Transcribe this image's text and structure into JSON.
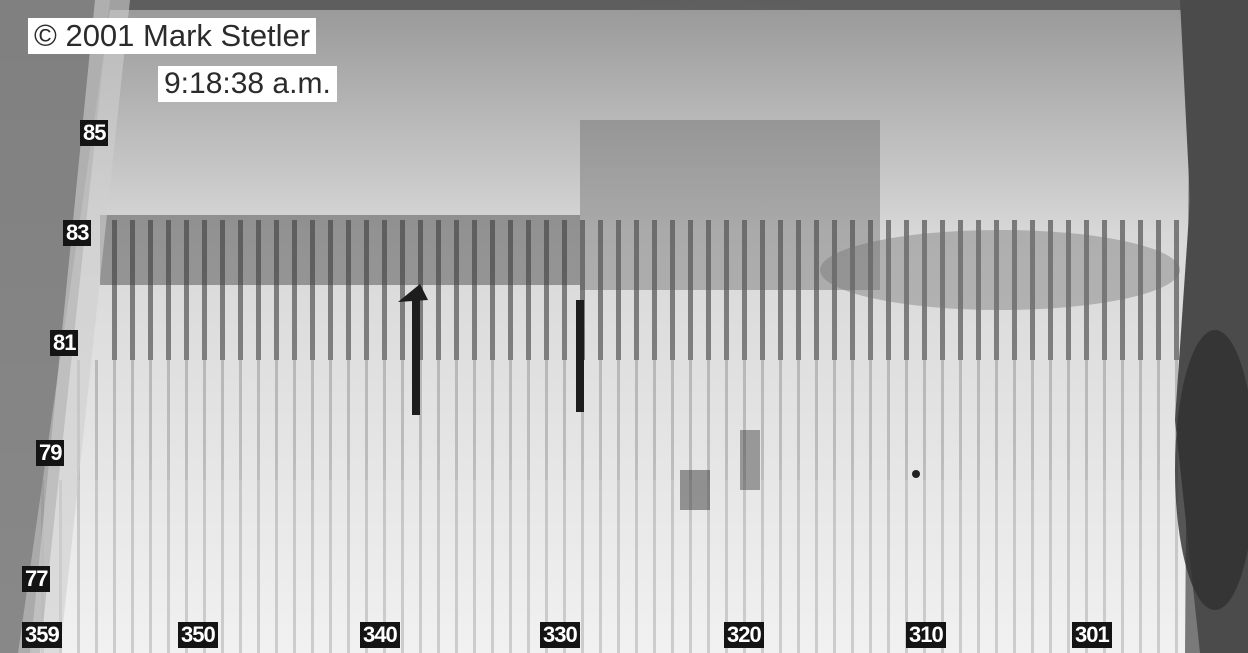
{
  "credit": {
    "copyright": "© 2001 Mark Stetler",
    "time": "9:18:38 a.m."
  },
  "floor_labels": [
    "85",
    "83",
    "81",
    "79",
    "77"
  ],
  "column_labels": [
    "359",
    "350",
    "340",
    "330",
    "320",
    "310",
    "301"
  ],
  "colors": {
    "label_background": "#141414",
    "label_text": "#ffffff",
    "credit_background": "#ffffff",
    "credit_text": "#2b2b2b"
  }
}
